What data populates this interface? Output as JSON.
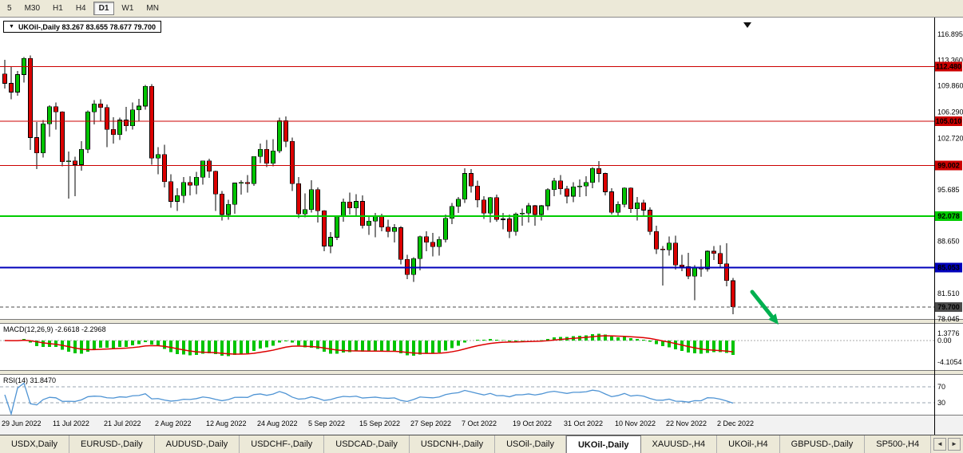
{
  "toolbar": {
    "timeframes": [
      {
        "label": "5",
        "active": false
      },
      {
        "label": "M30",
        "active": false
      },
      {
        "label": "H1",
        "active": false
      },
      {
        "label": "H4",
        "active": false
      },
      {
        "label": "D1",
        "active": true
      },
      {
        "label": "W1",
        "active": false
      },
      {
        "label": "MN",
        "active": false
      }
    ]
  },
  "chart": {
    "title": "UKOil-,Daily 83.267 83.655 78.677 79.700",
    "symbol_caret": "▼"
  },
  "chart_data": {
    "type": "candlestick",
    "symbol": "UKOil-",
    "timeframe": "Daily",
    "current_bar": {
      "open": 83.267,
      "high": 83.655,
      "low": 78.677,
      "close": 79.7
    },
    "x_labels": [
      "29 Jun 2022",
      "11 Jul 2022",
      "21 Jul 2022",
      "2 Aug 2022",
      "12 Aug 2022",
      "24 Aug 2022",
      "5 Sep 2022",
      "15 Sep 2022",
      "27 Sep 2022",
      "7 Oct 2022",
      "19 Oct 2022",
      "31 Oct 2022",
      "10 Nov 2022",
      "22 Nov 2022",
      "2 Dec 2022"
    ],
    "x_label_step": 8,
    "price_axis_labels": [
      "116.895",
      "113.360",
      "109.860",
      "106.290",
      "102.720",
      "95.685",
      "88.650",
      "81.510",
      "78.045"
    ],
    "levels": [
      {
        "price": 112.48,
        "label": "112.480",
        "color": "#cc0000",
        "text": "#ffffff",
        "width": 1,
        "style": "solid"
      },
      {
        "price": 105.01,
        "label": "105.010",
        "color": "#cc0000",
        "text": "#ffffff",
        "width": 1,
        "style": "solid"
      },
      {
        "price": 99.002,
        "label": "99.002",
        "color": "#cc0000",
        "text": "#ffffff",
        "width": 1,
        "style": "solid"
      },
      {
        "price": 92.078,
        "label": "92.078",
        "color": "#00cc00",
        "text": "#000000",
        "width": 2,
        "style": "solid"
      },
      {
        "price": 85.053,
        "label": "85.053",
        "color": "#0000bb",
        "text": "#ffffff",
        "width": 2,
        "style": "solid"
      },
      {
        "price": 79.7,
        "label": "79.700",
        "color": "#4d4d4d",
        "text": "#ffffff",
        "width": 1,
        "style": "dash"
      }
    ],
    "annotation": {
      "type": "arrow",
      "direction": "down-right",
      "color": "#00b050"
    },
    "candles": [
      [
        111.5,
        113.4,
        109.5,
        110.2
      ],
      [
        110.2,
        112.5,
        108.0,
        109.0
      ],
      [
        109.0,
        111.9,
        108.5,
        111.4
      ],
      [
        111.4,
        113.8,
        110.3,
        113.6
      ],
      [
        113.6,
        114.0,
        101.1,
        102.8
      ],
      [
        102.8,
        104.9,
        98.5,
        100.7
      ],
      [
        100.7,
        105.2,
        100.1,
        104.7
      ],
      [
        104.7,
        107.2,
        102.9,
        107.0
      ],
      [
        107.0,
        107.6,
        103.9,
        106.3
      ],
      [
        106.3,
        106.4,
        98.9,
        99.5
      ],
      [
        99.5,
        100.9,
        94.5,
        99.6
      ],
      [
        99.6,
        100.2,
        94.8,
        99.1
      ],
      [
        99.1,
        102.3,
        98.3,
        101.2
      ],
      [
        101.2,
        106.5,
        100.7,
        106.3
      ],
      [
        106.3,
        107.9,
        104.6,
        107.4
      ],
      [
        107.4,
        108.0,
        105.0,
        106.9
      ],
      [
        106.9,
        107.3,
        101.5,
        103.9
      ],
      [
        103.9,
        105.6,
        102.0,
        103.2
      ],
      [
        103.2,
        105.5,
        102.5,
        105.2
      ],
      [
        105.2,
        107.0,
        103.7,
        104.4
      ],
      [
        104.4,
        107.6,
        103.9,
        106.6
      ],
      [
        106.6,
        108.1,
        105.1,
        107.1
      ],
      [
        107.1,
        110.0,
        106.6,
        109.8
      ],
      [
        109.8,
        110.1,
        99.1,
        100.0
      ],
      [
        100.0,
        101.5,
        97.8,
        100.5
      ],
      [
        100.5,
        101.8,
        96.0,
        96.8
      ],
      [
        96.8,
        97.8,
        93.2,
        94.1
      ],
      [
        94.1,
        95.9,
        92.8,
        94.9
      ],
      [
        94.9,
        97.4,
        93.9,
        96.7
      ],
      [
        96.7,
        97.5,
        94.9,
        96.3
      ],
      [
        96.3,
        98.1,
        95.1,
        97.4
      ],
      [
        97.4,
        99.6,
        96.4,
        99.6
      ],
      [
        99.6,
        99.9,
        97.3,
        98.2
      ],
      [
        98.2,
        98.3,
        92.8,
        95.1
      ],
      [
        95.1,
        95.5,
        91.5,
        92.3
      ],
      [
        92.3,
        94.3,
        91.6,
        93.7
      ],
      [
        93.7,
        96.6,
        92.4,
        96.6
      ],
      [
        96.6,
        97.0,
        95.0,
        96.7
      ],
      [
        96.7,
        97.7,
        95.3,
        96.5
      ],
      [
        96.5,
        100.2,
        96.2,
        100.2
      ],
      [
        100.2,
        102.0,
        99.3,
        101.2
      ],
      [
        101.2,
        102.5,
        98.8,
        99.3
      ],
      [
        99.3,
        102.6,
        98.9,
        101.0
      ],
      [
        101.0,
        105.5,
        100.7,
        105.1
      ],
      [
        105.1,
        105.7,
        101.5,
        102.3
      ],
      [
        102.3,
        102.8,
        95.5,
        96.5
      ],
      [
        96.5,
        97.4,
        91.8,
        92.4
      ],
      [
        92.4,
        95.2,
        91.9,
        93.0
      ],
      [
        93.0,
        97.0,
        92.6,
        95.7
      ],
      [
        95.7,
        96.0,
        91.2,
        92.8
      ],
      [
        92.8,
        92.9,
        87.3,
        88.0
      ],
      [
        88.0,
        89.9,
        87.0,
        89.2
      ],
      [
        89.2,
        92.1,
        88.8,
        92.0
      ],
      [
        92.0,
        94.5,
        91.3,
        94.0
      ],
      [
        94.0,
        95.3,
        92.3,
        93.2
      ],
      [
        93.2,
        95.1,
        92.1,
        94.1
      ],
      [
        94.1,
        94.9,
        90.4,
        90.8
      ],
      [
        90.8,
        92.0,
        89.5,
        91.4
      ],
      [
        91.4,
        92.5,
        89.2,
        92.0
      ],
      [
        92.0,
        92.4,
        90.0,
        90.6
      ],
      [
        90.6,
        91.6,
        89.2,
        90.0
      ],
      [
        90.0,
        91.0,
        88.5,
        90.5
      ],
      [
        90.5,
        90.7,
        85.5,
        86.2
      ],
      [
        86.2,
        86.8,
        83.5,
        84.1
      ],
      [
        84.1,
        86.5,
        83.1,
        86.3
      ],
      [
        86.3,
        89.4,
        84.7,
        89.3
      ],
      [
        89.3,
        90.0,
        87.3,
        88.5
      ],
      [
        88.5,
        89.8,
        86.6,
        87.9
      ],
      [
        87.9,
        89.3,
        86.7,
        88.9
      ],
      [
        88.9,
        92.3,
        88.5,
        91.8
      ],
      [
        91.8,
        93.9,
        91.0,
        93.4
      ],
      [
        93.4,
        94.7,
        92.5,
        94.4
      ],
      [
        94.4,
        98.6,
        93.9,
        97.9
      ],
      [
        97.9,
        98.5,
        95.3,
        96.2
      ],
      [
        96.2,
        96.9,
        93.3,
        94.3
      ],
      [
        94.3,
        94.8,
        91.7,
        92.5
      ],
      [
        92.5,
        94.7,
        91.2,
        94.6
      ],
      [
        94.6,
        95.0,
        91.3,
        91.6
      ],
      [
        91.6,
        92.5,
        90.3,
        91.7
      ],
      [
        91.7,
        92.3,
        89.1,
        90.0
      ],
      [
        90.0,
        92.6,
        89.4,
        92.4
      ],
      [
        92.4,
        93.1,
        90.8,
        92.5
      ],
      [
        92.5,
        93.9,
        91.2,
        93.5
      ],
      [
        93.5,
        93.6,
        90.8,
        92.3
      ],
      [
        92.3,
        93.6,
        91.5,
        93.5
      ],
      [
        93.5,
        95.9,
        92.9,
        95.7
      ],
      [
        95.7,
        97.3,
        94.8,
        96.9
      ],
      [
        96.9,
        97.7,
        95.0,
        95.8
      ],
      [
        95.8,
        96.2,
        93.8,
        94.8
      ],
      [
        94.8,
        96.7,
        94.0,
        96.1
      ],
      [
        96.1,
        97.1,
        94.7,
        96.2
      ],
      [
        96.2,
        97.5,
        94.8,
        96.7
      ],
      [
        96.7,
        98.8,
        95.9,
        98.6
      ],
      [
        98.6,
        99.6,
        96.7,
        97.9
      ],
      [
        97.9,
        98.0,
        94.9,
        95.4
      ],
      [
        95.4,
        95.9,
        92.3,
        92.6
      ],
      [
        92.6,
        94.1,
        92.0,
        93.7
      ],
      [
        93.7,
        96.0,
        93.3,
        95.9
      ],
      [
        95.9,
        96.0,
        92.5,
        93.1
      ],
      [
        93.1,
        94.7,
        91.5,
        93.9
      ],
      [
        93.9,
        94.3,
        92.0,
        92.9
      ],
      [
        92.9,
        93.3,
        89.5,
        90.0
      ],
      [
        90.0,
        90.8,
        86.9,
        87.6
      ],
      [
        87.6,
        88.0,
        82.6,
        87.5
      ],
      [
        87.5,
        89.3,
        86.7,
        88.4
      ],
      [
        88.4,
        89.4,
        84.8,
        85.4
      ],
      [
        85.4,
        86.8,
        84.6,
        85.2
      ],
      [
        85.2,
        87.1,
        83.5,
        83.9
      ],
      [
        83.9,
        85.4,
        80.6,
        85.0
      ],
      [
        85.0,
        86.2,
        83.8,
        84.9
      ],
      [
        84.9,
        87.4,
        84.5,
        87.3
      ],
      [
        87.3,
        88.0,
        86.1,
        87.0
      ],
      [
        87.0,
        88.1,
        85.2,
        85.6
      ],
      [
        85.6,
        88.4,
        82.5,
        83.3
      ],
      [
        83.267,
        83.655,
        78.677,
        79.7
      ]
    ]
  },
  "macd": {
    "label": "MACD(12,26,9) -2.6618 -2.2968",
    "params": [
      12,
      26,
      9
    ],
    "main_value": -2.6618,
    "signal_value": -2.2968,
    "axis_labels": [
      {
        "text": "1.3776",
        "value": 1.3776
      },
      {
        "text": "0.00",
        "value": 0
      },
      {
        "text": "-4.1054",
        "value": -4.1054
      }
    ],
    "histogram_color": "#00c400",
    "signal_color": "#dd0000"
  },
  "rsi": {
    "label": "RSI(14) 31.8470",
    "period": 14,
    "value": 31.847,
    "levels": [
      {
        "text": "70",
        "value": 70
      },
      {
        "text": "30",
        "value": 30
      }
    ],
    "line_color": "#4f94d4"
  },
  "tabs": {
    "items": [
      {
        "label": "USDX,Daily",
        "active": false
      },
      {
        "label": "EURUSD-,Daily",
        "active": false
      },
      {
        "label": "AUDUSD-,Daily",
        "active": false
      },
      {
        "label": "USDCHF-,Daily",
        "active": false
      },
      {
        "label": "USDCAD-,Daily",
        "active": false
      },
      {
        "label": "USDCNH-,Daily",
        "active": false
      },
      {
        "label": "USOil-,Daily",
        "active": false
      },
      {
        "label": "UKOil-,Daily",
        "active": true
      },
      {
        "label": "XAUUSD-,H4",
        "active": false
      },
      {
        "label": "UKOil-,H4",
        "active": false
      },
      {
        "label": "GBPUSD-,Daily",
        "active": false
      },
      {
        "label": "SP500-,H4",
        "active": false
      }
    ],
    "scroll_left": "◄",
    "scroll_right": "►"
  }
}
